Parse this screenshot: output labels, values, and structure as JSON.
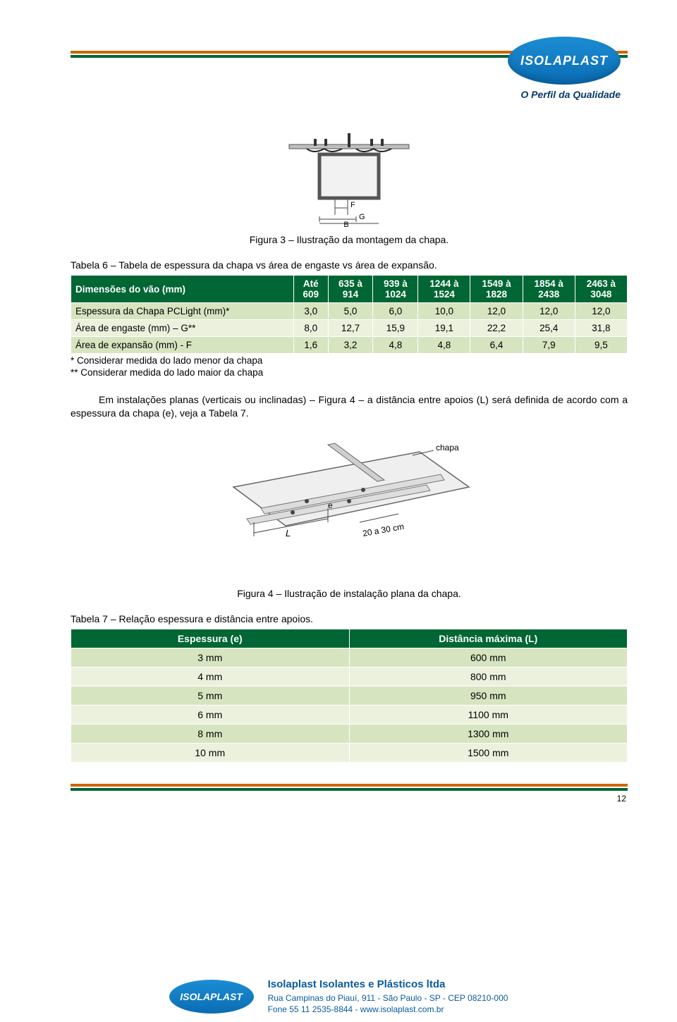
{
  "brand": {
    "name": "ISOLAPLAST",
    "tagline": "O Perfil da Qualidade"
  },
  "colors": {
    "rule_orange": "#cc6600",
    "rule_green": "#006633",
    "table_header_bg": "#006633",
    "table_header_fg": "#ffffff",
    "row_even_bg": "#d7e4c0",
    "row_odd_bg": "#ecf1dd",
    "logo_grad_top": "#1c8dd4",
    "logo_grad_bottom": "#0a6cb3",
    "footer_text": "#0a5a9c"
  },
  "figure3": {
    "caption": "Figura 3 – Ilustração da montagem da chapa.",
    "labels": {
      "F": "F",
      "G": "G",
      "B": "B"
    }
  },
  "table6": {
    "title": "Tabela 6 – Tabela de espessura da chapa vs área de engaste vs área de expansão.",
    "head_row_label": "Dimensões do vão (mm)",
    "columns": [
      {
        "l1": "Até",
        "l2": "609"
      },
      {
        "l1": "635 à",
        "l2": "914"
      },
      {
        "l1": "939 à",
        "l2": "1024"
      },
      {
        "l1": "1244 à",
        "l2": "1524"
      },
      {
        "l1": "1549 à",
        "l2": "1828"
      },
      {
        "l1": "1854 à",
        "l2": "2438"
      },
      {
        "l1": "2463 à",
        "l2": "3048"
      }
    ],
    "rows": [
      {
        "label": "Espessura da Chapa PCLight (mm)*",
        "values": [
          "3,0",
          "5,0",
          "6,0",
          "10,0",
          "12,0",
          "12,0",
          "12,0"
        ]
      },
      {
        "label": "Área de engaste (mm) – G**",
        "values": [
          "8,0",
          "12,7",
          "15,9",
          "19,1",
          "22,2",
          "25,4",
          "31,8"
        ]
      },
      {
        "label": "Área de expansão (mm) - F",
        "values": [
          "1,6",
          "3,2",
          "4,8",
          "4,8",
          "6,4",
          "7,9",
          "9,5"
        ]
      }
    ],
    "notes": [
      "* Considerar medida do lado menor da chapa",
      "** Considerar medida do lado maior da chapa"
    ]
  },
  "paragraph": "Em instalações planas (verticais ou inclinadas) – Figura 4 – a distância entre apoios (L) será definida de acordo com a espessura da chapa (e), veja a Tabela 7.",
  "figure4": {
    "caption": "Figura 4 – Ilustração de instalação plana da chapa.",
    "labels": {
      "chapa": "chapa",
      "e": "e",
      "L": "L",
      "range": "20 a 30 cm"
    }
  },
  "table7": {
    "title": "Tabela 7 – Relação espessura e distância entre apoios.",
    "head": [
      "Espessura (e)",
      "Distância máxima (L)"
    ],
    "rows": [
      [
        "3 mm",
        "600 mm"
      ],
      [
        "4 mm",
        "800 mm"
      ],
      [
        "5 mm",
        "950 mm"
      ],
      [
        "6 mm",
        "1100 mm"
      ],
      [
        "8 mm",
        "1300 mm"
      ],
      [
        "10 mm",
        "1500 mm"
      ]
    ]
  },
  "page_number": "12",
  "footer": {
    "company": "Isolaplast Isolantes e Plásticos ltda",
    "address": "Rua Campinas do Piauí, 911 - São Paulo - SP - CEP 08210-000",
    "contact": "Fone 55 11 2535-8844 - www.isolaplast.com.br"
  }
}
